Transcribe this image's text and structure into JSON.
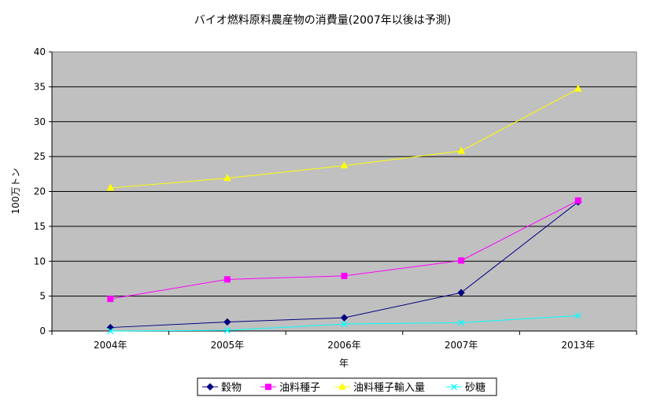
{
  "chart_data": {
    "type": "line",
    "title": "バイオ燃料原料農産物の消費量(2007年以後は予測)",
    "xlabel": "年",
    "ylabel": "100万トン",
    "categories": [
      "2004年",
      "2005年",
      "2006年",
      "2007年",
      "2013年"
    ],
    "ylim": [
      0,
      40
    ],
    "yticks": [
      0,
      5,
      10,
      15,
      20,
      25,
      30,
      35,
      40
    ],
    "grid": true,
    "legend_position": "bottom",
    "series": [
      {
        "name": "穀物",
        "values": [
          0.5,
          1.3,
          1.9,
          5.5,
          18.5
        ],
        "color": "#000080",
        "marker": "diamond"
      },
      {
        "name": "油料種子",
        "values": [
          4.6,
          7.4,
          7.9,
          10.1,
          18.7
        ],
        "color": "#ff00ff",
        "marker": "square"
      },
      {
        "name": "油料種子輸入量",
        "values": [
          20.5,
          21.9,
          23.7,
          25.8,
          34.7
        ],
        "color": "#ffff00",
        "marker": "triangle"
      },
      {
        "name": "砂糖",
        "values": [
          0.0,
          0.1,
          1.0,
          1.2,
          2.2
        ],
        "color": "#00ffff",
        "marker": "x"
      }
    ],
    "plot_background": "#c0c0c0"
  }
}
